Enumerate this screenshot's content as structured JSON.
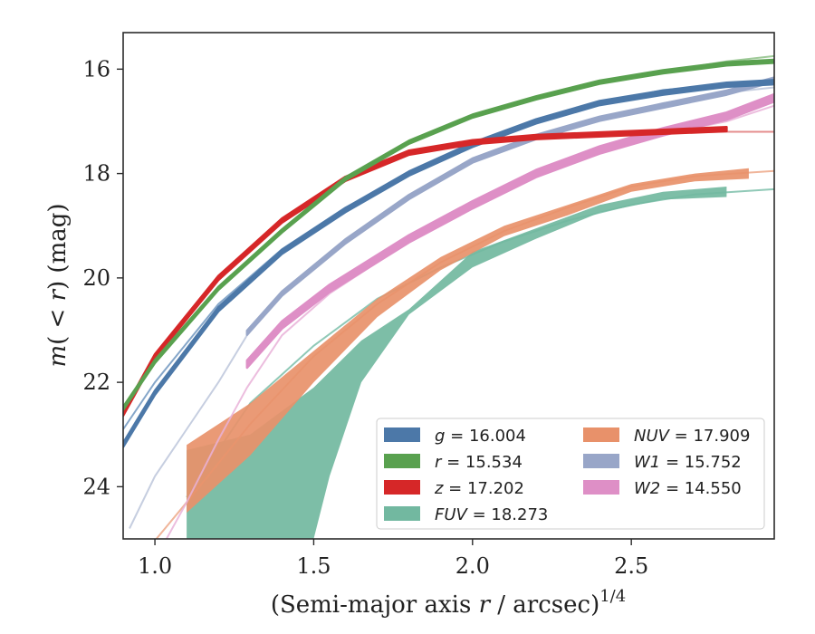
{
  "chart_data": {
    "type": "line",
    "xlabel_main": "(Semi-major axis ",
    "xlabel_var": "r",
    "xlabel_tail": " / arcsec)",
    "xlabel_sup": "1/4",
    "ylabel_pre": "m",
    "ylabel_paren_open": "( < ",
    "ylabel_var": "r",
    "ylabel_paren_close": ")",
    "ylabel_unit": " (mag)",
    "xlim": [
      0.9,
      2.95
    ],
    "ylim": [
      25.0,
      15.3
    ],
    "y_inverted": true,
    "xticks": [
      {
        "value": 1.0,
        "label": "1.0"
      },
      {
        "value": 1.5,
        "label": "1.5"
      },
      {
        "value": 2.0,
        "label": "2.0"
      },
      {
        "value": 2.5,
        "label": "2.5"
      }
    ],
    "yticks": [
      {
        "value": 16,
        "label": "16"
      },
      {
        "value": 18,
        "label": "18"
      },
      {
        "value": 20,
        "label": "20"
      },
      {
        "value": 22,
        "label": "22"
      },
      {
        "value": 24,
        "label": "24"
      }
    ],
    "legend_position": "bottom-right",
    "legend_columns": 2,
    "series": [
      {
        "name": "g",
        "name_value": "= 16.004",
        "color": "#4c78a8",
        "model_color": "#7096c0",
        "band_width": 0.08,
        "data": [
          [
            0.9,
            23.2
          ],
          [
            1.0,
            22.2
          ],
          [
            1.2,
            20.6
          ],
          [
            1.4,
            19.5
          ],
          [
            1.6,
            18.7
          ],
          [
            1.8,
            18.0
          ],
          [
            2.0,
            17.45
          ],
          [
            2.2,
            17.0
          ],
          [
            2.4,
            16.65
          ],
          [
            2.6,
            16.45
          ],
          [
            2.8,
            16.3
          ],
          [
            2.95,
            16.25
          ]
        ],
        "model": [
          [
            0.9,
            22.9
          ],
          [
            1.0,
            22.0
          ],
          [
            1.2,
            20.5
          ],
          [
            1.4,
            19.45
          ],
          [
            1.6,
            18.65
          ],
          [
            1.8,
            18.0
          ],
          [
            2.0,
            17.45
          ],
          [
            2.2,
            17.0
          ],
          [
            2.4,
            16.65
          ],
          [
            2.6,
            16.4
          ],
          [
            2.8,
            16.3
          ],
          [
            2.95,
            16.2
          ]
        ]
      },
      {
        "name": "r",
        "name_value": "= 15.534",
        "color": "#59a14f",
        "model_color": "#8ec187",
        "band_width": 0.06,
        "data": [
          [
            0.9,
            22.5
          ],
          [
            1.0,
            21.6
          ],
          [
            1.2,
            20.2
          ],
          [
            1.4,
            19.1
          ],
          [
            1.6,
            18.1
          ],
          [
            1.8,
            17.4
          ],
          [
            2.0,
            16.9
          ],
          [
            2.2,
            16.55
          ],
          [
            2.4,
            16.25
          ],
          [
            2.6,
            16.05
          ],
          [
            2.8,
            15.9
          ],
          [
            2.95,
            15.85
          ]
        ],
        "model": [
          [
            0.9,
            22.5
          ],
          [
            1.0,
            21.6
          ],
          [
            1.2,
            20.2
          ],
          [
            1.4,
            19.1
          ],
          [
            1.6,
            18.1
          ],
          [
            1.8,
            17.4
          ],
          [
            2.0,
            16.9
          ],
          [
            2.2,
            16.55
          ],
          [
            2.4,
            16.25
          ],
          [
            2.6,
            16.05
          ],
          [
            2.8,
            15.85
          ],
          [
            2.95,
            15.75
          ]
        ]
      },
      {
        "name": "z",
        "name_value": "= 17.202",
        "color": "#d62728",
        "model_color": "#e07a7a",
        "band_width": 0.08,
        "data": [
          [
            0.9,
            22.6
          ],
          [
            1.0,
            21.5
          ],
          [
            1.2,
            20.0
          ],
          [
            1.4,
            18.9
          ],
          [
            1.6,
            18.1
          ],
          [
            1.8,
            17.6
          ],
          [
            2.0,
            17.4
          ],
          [
            2.2,
            17.3
          ],
          [
            2.4,
            17.25
          ],
          [
            2.6,
            17.2
          ],
          [
            2.8,
            17.15
          ]
        ],
        "model": [
          [
            0.9,
            22.6
          ],
          [
            1.0,
            21.5
          ],
          [
            1.2,
            20.0
          ],
          [
            1.4,
            18.9
          ],
          [
            1.6,
            18.1
          ],
          [
            1.8,
            17.6
          ],
          [
            2.0,
            17.4
          ],
          [
            2.2,
            17.3
          ],
          [
            2.4,
            17.25
          ],
          [
            2.6,
            17.22
          ],
          [
            2.8,
            17.2
          ],
          [
            2.95,
            17.2
          ]
        ]
      },
      {
        "name": "FUV",
        "name_value": "= 18.273",
        "color": "#72b8a0",
        "model_color": "#7cc0aa",
        "band_upper": [
          [
            1.1,
            23.3
          ],
          [
            1.3,
            23.0
          ],
          [
            1.5,
            22.1
          ],
          [
            1.65,
            21.2
          ],
          [
            1.8,
            20.6
          ],
          [
            2.0,
            19.5
          ],
          [
            2.2,
            19.05
          ],
          [
            2.4,
            18.6
          ],
          [
            2.6,
            18.35
          ],
          [
            2.8,
            18.25
          ]
        ],
        "band_lower": [
          [
            1.1,
            25.0
          ],
          [
            1.5,
            25.0
          ],
          [
            1.55,
            23.8
          ],
          [
            1.65,
            22.0
          ],
          [
            1.8,
            20.7
          ],
          [
            2.0,
            19.8
          ],
          [
            2.2,
            19.25
          ],
          [
            2.4,
            18.75
          ],
          [
            2.6,
            18.5
          ],
          [
            2.8,
            18.45
          ]
        ],
        "model": [
          [
            1.1,
            24.2
          ],
          [
            1.3,
            22.4
          ],
          [
            1.5,
            21.3
          ],
          [
            1.7,
            20.4
          ],
          [
            1.9,
            19.8
          ],
          [
            2.1,
            19.3
          ],
          [
            2.3,
            18.9
          ],
          [
            2.5,
            18.6
          ],
          [
            2.7,
            18.4
          ],
          [
            2.95,
            18.3
          ]
        ]
      },
      {
        "name": "NUV",
        "name_value": "= 17.909",
        "color": "#e8916a",
        "model_color": "#eda888",
        "band_upper": [
          [
            1.1,
            23.2
          ],
          [
            1.3,
            22.4
          ],
          [
            1.5,
            21.4
          ],
          [
            1.7,
            20.4
          ],
          [
            1.9,
            19.6
          ],
          [
            2.1,
            19.0
          ],
          [
            2.3,
            18.6
          ],
          [
            2.5,
            18.2
          ],
          [
            2.7,
            18.0
          ],
          [
            2.87,
            17.9
          ]
        ],
        "band_lower": [
          [
            1.1,
            24.5
          ],
          [
            1.3,
            23.4
          ],
          [
            1.5,
            22.0
          ],
          [
            1.7,
            20.75
          ],
          [
            1.9,
            19.85
          ],
          [
            2.1,
            19.2
          ],
          [
            2.3,
            18.8
          ],
          [
            2.5,
            18.35
          ],
          [
            2.7,
            18.15
          ],
          [
            2.87,
            18.1
          ]
        ],
        "model": [
          [
            0.95,
            25.4
          ],
          [
            1.1,
            24.3
          ],
          [
            1.3,
            22.8
          ],
          [
            1.5,
            21.5
          ],
          [
            1.7,
            20.5
          ],
          [
            1.9,
            19.7
          ],
          [
            2.1,
            19.1
          ],
          [
            2.3,
            18.65
          ],
          [
            2.5,
            18.25
          ],
          [
            2.7,
            18.05
          ],
          [
            2.95,
            17.95
          ]
        ]
      },
      {
        "name": "W1",
        "name_value": "= 15.752",
        "color": "#98a6c8",
        "model_color": "#bcc5db",
        "band_width": 0.08,
        "data": [
          [
            1.29,
            21.05
          ],
          [
            1.4,
            20.3
          ],
          [
            1.6,
            19.3
          ],
          [
            1.8,
            18.45
          ],
          [
            2.0,
            17.75
          ],
          [
            2.2,
            17.3
          ],
          [
            2.4,
            16.95
          ],
          [
            2.6,
            16.7
          ],
          [
            2.8,
            16.45
          ],
          [
            2.95,
            16.2
          ]
        ],
        "model": [
          [
            0.92,
            24.8
          ],
          [
            1.0,
            23.8
          ],
          [
            1.1,
            22.9
          ],
          [
            1.2,
            22.0
          ],
          [
            1.29,
            21.1
          ],
          [
            1.4,
            20.3
          ],
          [
            1.6,
            19.3
          ],
          [
            1.8,
            18.45
          ],
          [
            2.0,
            17.75
          ],
          [
            2.2,
            17.3
          ],
          [
            2.4,
            16.95
          ],
          [
            2.6,
            16.65
          ],
          [
            2.8,
            16.45
          ],
          [
            2.95,
            16.35
          ]
        ]
      },
      {
        "name": "W2",
        "name_value": "= 14.550",
        "color": "#de8fc6",
        "model_color": "#e9b1d8",
        "band_width": 0.14,
        "data": [
          [
            1.29,
            21.65
          ],
          [
            1.4,
            20.9
          ],
          [
            1.55,
            20.2
          ],
          [
            1.8,
            19.25
          ],
          [
            2.0,
            18.6
          ],
          [
            2.2,
            18.0
          ],
          [
            2.4,
            17.55
          ],
          [
            2.6,
            17.2
          ],
          [
            2.8,
            16.9
          ],
          [
            2.95,
            16.55
          ]
        ],
        "model": [
          [
            1.0,
            25.4
          ],
          [
            1.1,
            24.3
          ],
          [
            1.2,
            23.1
          ],
          [
            1.29,
            22.1
          ],
          [
            1.4,
            21.1
          ],
          [
            1.55,
            20.3
          ],
          [
            1.8,
            19.3
          ],
          [
            2.0,
            18.6
          ],
          [
            2.2,
            18.05
          ],
          [
            2.4,
            17.6
          ],
          [
            2.6,
            17.25
          ],
          [
            2.8,
            17.0
          ],
          [
            2.95,
            16.7
          ]
        ]
      }
    ]
  }
}
